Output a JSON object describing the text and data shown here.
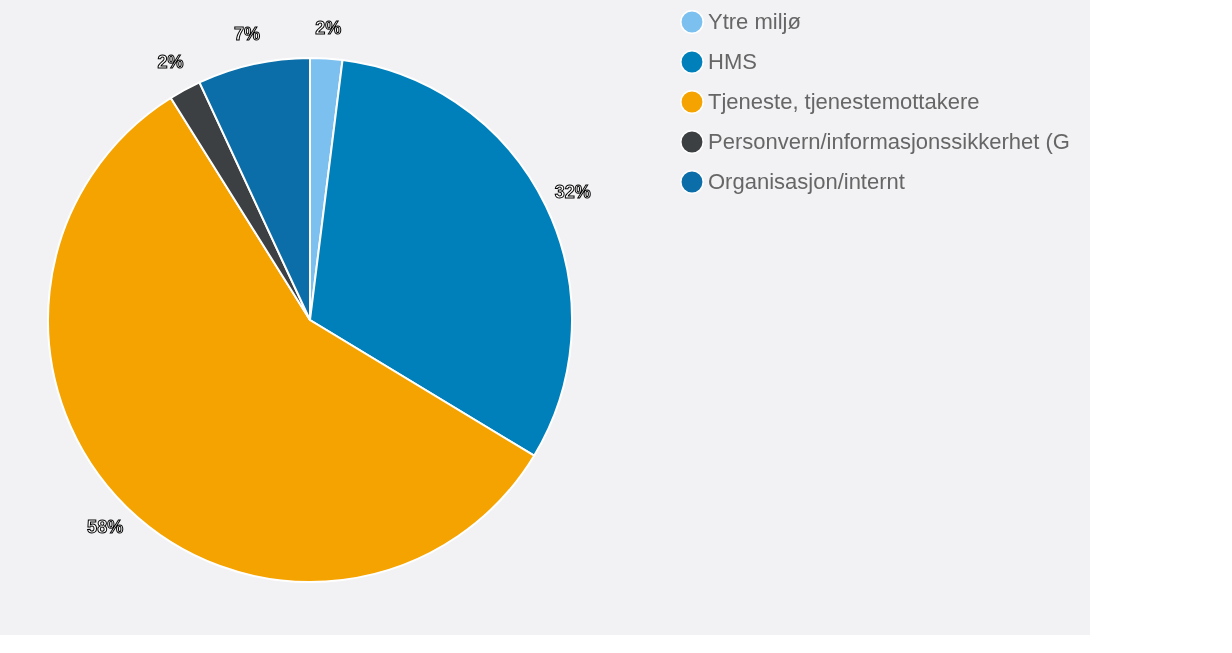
{
  "chart_data": {
    "type": "pie",
    "categories": [
      "Ytre miljø",
      "HMS",
      "Tjeneste, tjenestemottakere",
      "Personvern/informasjonssikkerhet (G",
      "Organisasjon/internt"
    ],
    "values": [
      2,
      32,
      58,
      2,
      7
    ],
    "value_labels": [
      "2%",
      "32%",
      "58%",
      "2%",
      "7%"
    ],
    "colors": [
      "#7cc0f0",
      "#0080bb",
      "#f5a300",
      "#3d4043",
      "#0b6ea8"
    ],
    "legend": "top right"
  }
}
